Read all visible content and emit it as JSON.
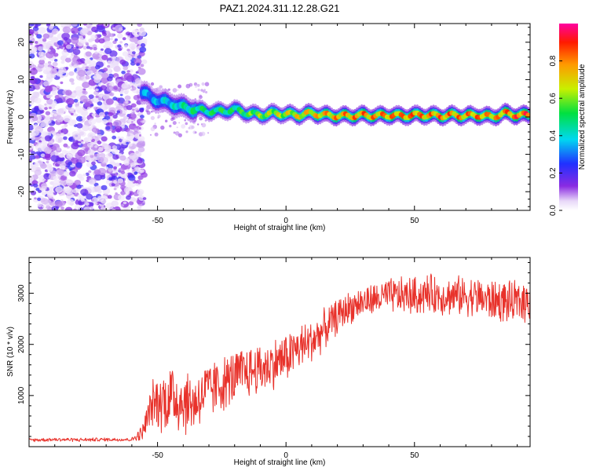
{
  "figure": {
    "title": "PAZ1.2024.311.12.28.G21"
  },
  "chart_data": [
    {
      "type": "heatmap",
      "title": "PAZ1.2024.311.12.28.G21",
      "xlabel": "Height of straight line (km)",
      "ylabel": "Frequency (Hz)",
      "xlim": [
        -100,
        95
      ],
      "ylim": [
        -25,
        25
      ],
      "x_ticks": [
        -50,
        0,
        50
      ],
      "x_tick_labels": [
        "-50",
        "0",
        "50"
      ],
      "y_ticks": [
        -20,
        -10,
        0,
        10,
        20
      ],
      "y_tick_labels": [
        "-20",
        "-10",
        "0",
        "10",
        "20"
      ],
      "colorbar": {
        "label": "Normalized spectral amplitude",
        "range": [
          0,
          1
        ],
        "ticks": [
          0.0,
          0.2,
          0.4,
          0.6,
          0.8
        ],
        "tick_labels": [
          "0.0",
          "0.2",
          "0.4",
          "0.6",
          "0.8"
        ],
        "colormap": "rainbow (white-violet-blue-cyan-green-yellow-red-magenta)"
      },
      "noise_region_x": [
        -100,
        -55
      ],
      "ridge": {
        "x": [
          -56,
          -52,
          -48,
          -44,
          -40,
          -35,
          -30,
          -25,
          -20,
          -15,
          -10,
          -5,
          0,
          5,
          10,
          15,
          20,
          25,
          30,
          35,
          40,
          45,
          50,
          55,
          60,
          65,
          70,
          75,
          80,
          85,
          90,
          95
        ],
        "freq": [
          6.5,
          5.0,
          4.0,
          3.5,
          2.5,
          2.0,
          1.5,
          1.5,
          2.0,
          1.0,
          0.5,
          1.0,
          0.8,
          0.5,
          1.0,
          0.5,
          0.3,
          0.3,
          0.5,
          0.3,
          0.5,
          0.3,
          0.5,
          0.5,
          0.3,
          0.5,
          0.3,
          0.5,
          0.0,
          1.0,
          0.5,
          0.5
        ],
        "amplitude": [
          0.4,
          0.38,
          0.42,
          0.45,
          0.5,
          0.55,
          0.55,
          0.58,
          0.55,
          0.62,
          0.68,
          0.72,
          0.75,
          0.8,
          0.82,
          0.85,
          0.87,
          0.88,
          0.9,
          0.88,
          0.9,
          0.9,
          0.92,
          0.88,
          0.92,
          0.9,
          0.88,
          0.92,
          0.85,
          0.9,
          0.95,
          0.95
        ]
      },
      "grid": false
    },
    {
      "type": "line",
      "title": "",
      "xlabel": "Height of straight line (km)",
      "ylabel": "SNR (10 * v/v)",
      "xlim": [
        -100,
        95
      ],
      "ylim": [
        0,
        3700
      ],
      "x_ticks": [
        -50,
        0,
        50
      ],
      "x_tick_labels": [
        "-50",
        "0",
        "50"
      ],
      "y_ticks": [
        1000,
        2000,
        3000
      ],
      "y_tick_labels": [
        "1000",
        "2000",
        "3000"
      ],
      "series": [
        {
          "color": "#e8322b",
          "x": [
            -100,
            -90,
            -80,
            -70,
            -60,
            -56,
            -52,
            -48,
            -44,
            -40,
            -36,
            -32,
            -28,
            -24,
            -20,
            -16,
            -12,
            -8,
            -4,
            0,
            4,
            8,
            12,
            16,
            20,
            24,
            28,
            32,
            36,
            40,
            44,
            48,
            52,
            56,
            60,
            64,
            68,
            72,
            76,
            80,
            84,
            88,
            92,
            95
          ],
          "base": [
            130,
            140,
            135,
            140,
            140,
            260,
            850,
            900,
            1000,
            880,
            850,
            1050,
            1150,
            1250,
            1350,
            1450,
            1500,
            1550,
            1650,
            1750,
            1900,
            2000,
            2150,
            2350,
            2550,
            2700,
            2800,
            2850,
            2900,
            2950,
            2950,
            2950,
            2950,
            3000,
            2950,
            2950,
            2950,
            2950,
            2900,
            2850,
            2850,
            2800,
            2850,
            2850
          ],
          "amplitude": [
            40,
            40,
            40,
            40,
            40,
            180,
            500,
            700,
            800,
            750,
            650,
            650,
            620,
            600,
            600,
            580,
            560,
            560,
            550,
            540,
            520,
            500,
            460,
            420,
            380,
            360,
            350,
            350,
            360,
            380,
            400,
            420,
            420,
            420,
            420,
            420,
            430,
            430,
            450,
            460,
            460,
            460,
            460,
            460
          ]
        }
      ],
      "grid": false
    }
  ]
}
